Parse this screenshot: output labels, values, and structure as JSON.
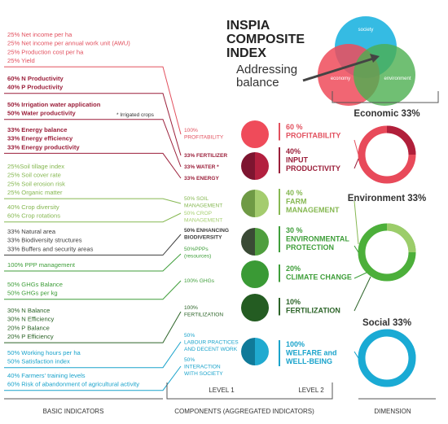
{
  "header": {
    "title_lines": [
      "INSPIA",
      "COMPOSITE",
      "INDEX"
    ],
    "subtitle_lines": [
      "Addressing",
      "balance"
    ]
  },
  "venn": {
    "society": "society",
    "economy": "economy",
    "environment": "environment"
  },
  "basic_indicators": [
    {
      "lines": [
        "25% Net income per ha",
        "25% Net income per annual work unit (AWU)",
        "25% Production cost per ha",
        "25% Yield"
      ]
    },
    {
      "lines": [
        "60% N Productivity",
        "40% P Productivity"
      ]
    },
    {
      "lines": [
        "50% Irrigation water application",
        "50% Water productivity"
      ],
      "note": "* Irrigated crops"
    },
    {
      "lines": [
        "33% Energy balance",
        "33% Energy efficiency",
        "33% Energy productivity"
      ]
    },
    {
      "lines": [
        "25%Soil tillage index",
        "25% Soil cover rate",
        "25% Soil erosion risk",
        "25% Organic matter"
      ]
    },
    {
      "lines": [
        "40% Crop diversity",
        "60% Crop rotations"
      ]
    },
    {
      "lines": [
        "33% Natural area",
        "33% Biodiversity structures",
        "33% Buffers and security areas"
      ]
    },
    {
      "lines": [
        "100% PPP management"
      ]
    },
    {
      "lines": [
        "50% GHGs Balance",
        "50% GHGs per kg"
      ]
    },
    {
      "lines": [
        "30% N Balance",
        "30% N Efficiency",
        "20% P Balance",
        "20% P Efficiency"
      ]
    },
    {
      "lines": [
        "50% Working hours per ha",
        "50% Satisfaction index"
      ]
    },
    {
      "lines": [
        "40% Farmers' training levels",
        "60% Risk of abandonment of agricultural activity"
      ]
    }
  ],
  "components_level1": [
    {
      "lines": [
        "100%",
        "PROFITABILITY"
      ]
    },
    {
      "lines": [
        "33% FERTILIZER"
      ]
    },
    {
      "lines": [
        "33% WATER *"
      ]
    },
    {
      "lines": [
        "33% ENERGY"
      ]
    },
    {
      "lines": [
        "50% SOIL",
        "MANAGEMENT"
      ]
    },
    {
      "lines": [
        "50% CROP",
        "MANAGEMENT"
      ]
    },
    {
      "lines": [
        "50% ENHANCING",
        "BIODIVERSITY"
      ]
    },
    {
      "lines": [
        "50%PPPs",
        "(resources)"
      ]
    },
    {
      "lines": [
        "100% GHGs"
      ]
    },
    {
      "lines": [
        "100%",
        "FERTILIZATION"
      ]
    },
    {
      "lines": [
        "50%",
        "LABOUR PRACTICES",
        "AND DECENT WORK"
      ]
    },
    {
      "lines": [
        "50%",
        "INTERACTION",
        "WITH SOCIETY"
      ]
    }
  ],
  "components_level2": [
    {
      "lines": [
        "60 %",
        "PROFITABILITY"
      ]
    },
    {
      "lines": [
        "40%",
        "INPUT",
        "PRODUCTIVITY"
      ]
    },
    {
      "lines": [
        "40 %",
        "FARM",
        "MANAGEMENT"
      ]
    },
    {
      "lines": [
        "30 %",
        "ENVIRONMENTAL",
        "PROTECTION"
      ]
    },
    {
      "lines": [
        "20%",
        "CLIMATE CHANGE"
      ]
    },
    {
      "lines": [
        "10%",
        "FERTILIZATION"
      ]
    },
    {
      "lines": [
        "100%",
        "WELFARE and",
        "WELL-BEING"
      ]
    }
  ],
  "dimensions": [
    "Economic 33%",
    "Environment 33%",
    "Social 33%"
  ],
  "footer": {
    "basic": "BASIC INDICATORS",
    "level1": "LEVEL 1",
    "level2": "LEVEL 2",
    "components": "COMPONENTS (AGGREGATED INDICATORS)",
    "dimension": "DIMENSION"
  }
}
